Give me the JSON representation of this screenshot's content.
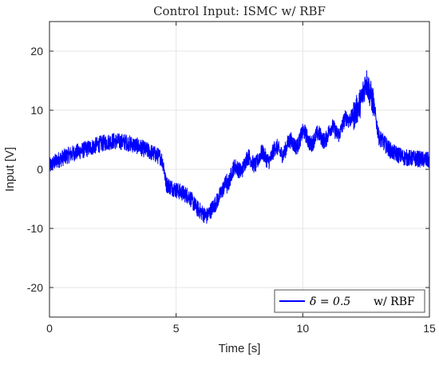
{
  "chart_data": {
    "type": "line",
    "title": "Control Input: ISMC w/ RBF",
    "xlabel": "Time [s]",
    "ylabel": "Input [V]",
    "xlim": [
      0,
      15
    ],
    "ylim": [
      -25,
      25
    ],
    "xticks": [
      0,
      5,
      10,
      15
    ],
    "yticks": [
      -20,
      -10,
      0,
      10,
      20
    ],
    "grid": true,
    "legend_position": "bottom-right",
    "colors": {
      "series": "#0000ff",
      "grid": "#e6e6e6",
      "axes": "#262626"
    },
    "series": [
      {
        "name_math": "δ̄ = 0.5",
        "name_suffix": "w/ RBF",
        "noise_amplitude": 1.4,
        "x": [
          0,
          0.3,
          0.8,
          1.5,
          2.0,
          2.5,
          3.0,
          3.5,
          4.0,
          4.4,
          4.5,
          4.6,
          5.0,
          5.5,
          5.8,
          6.2,
          6.6,
          7.0,
          7.5,
          8.0,
          8.5,
          9.0,
          9.5,
          10.0,
          10.5,
          11.0,
          11.5,
          12.0,
          12.3,
          12.5,
          12.8,
          13.0,
          13.5,
          14.0,
          14.5,
          15.0
        ],
        "y": [
          0.5,
          1.5,
          2.5,
          3.5,
          4.3,
          4.8,
          4.6,
          3.9,
          2.9,
          2.0,
          0.8,
          -2.5,
          -3.5,
          -4.5,
          -6.5,
          -8.0,
          -5.5,
          -2.0,
          0.5,
          1.5,
          2.0,
          3.0,
          4.0,
          5.5,
          5.0,
          6.0,
          7.0,
          9.0,
          11.5,
          15.0,
          11.0,
          5.5,
          3.0,
          2.0,
          1.8,
          1.5
        ]
      }
    ]
  }
}
